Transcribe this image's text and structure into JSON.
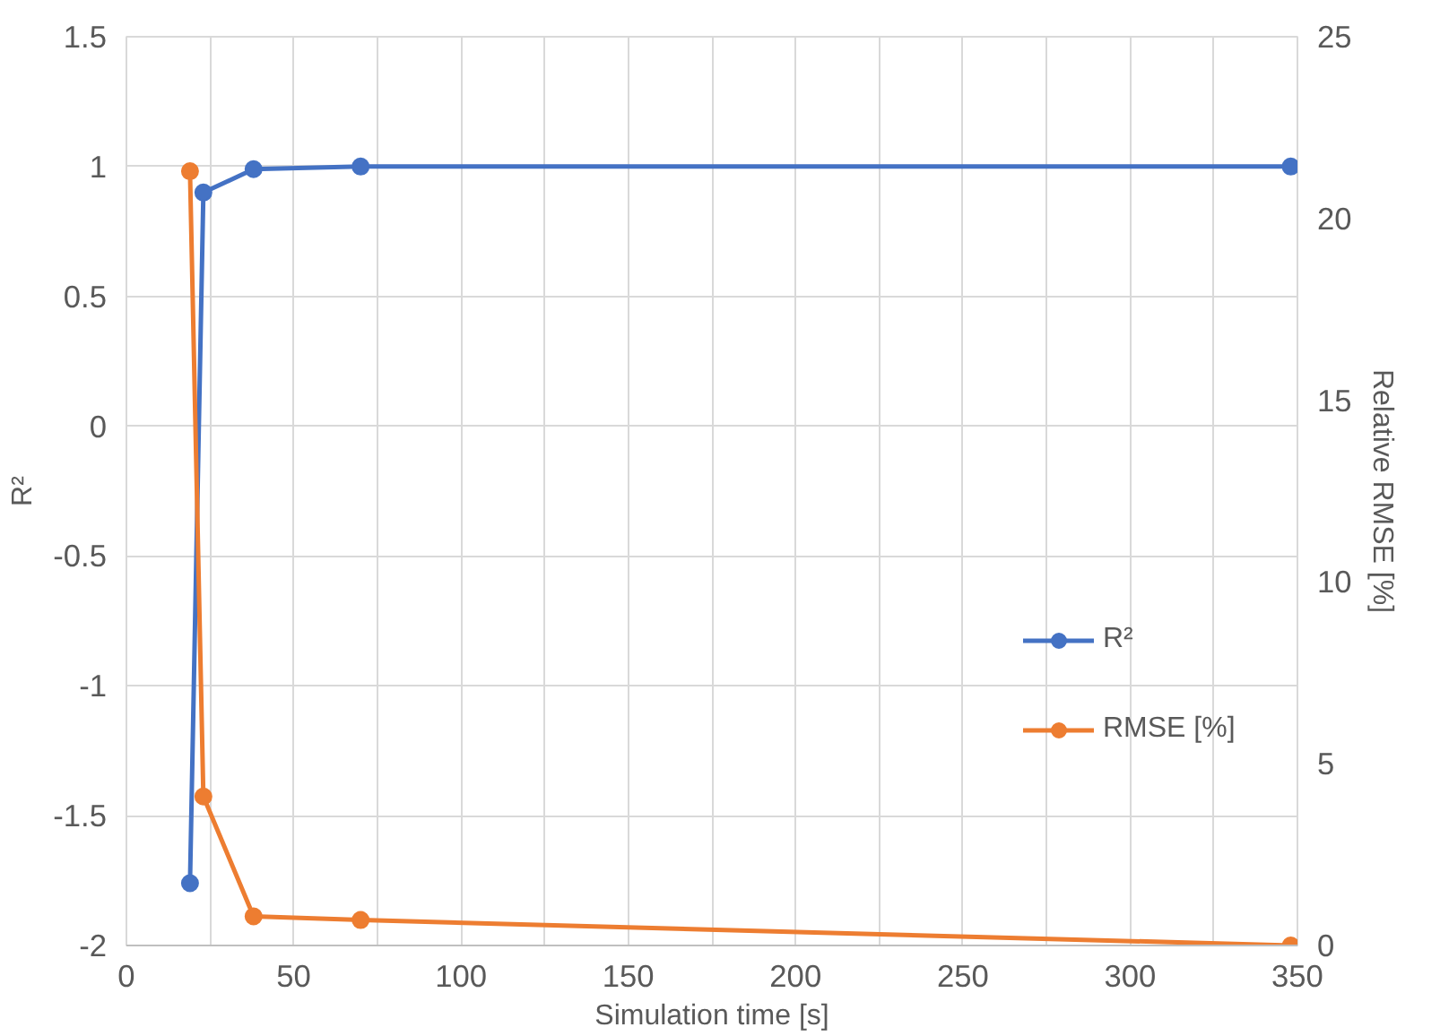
{
  "chart_data": {
    "type": "line",
    "xlabel": "Simulation time [s]",
    "ylabel": "R²",
    "y2label": "Relative RMSE [%]",
    "series": [
      {
        "name": "R²",
        "color": "#4472c4",
        "x": [
          19,
          23,
          38,
          70,
          348
        ],
        "values": [
          -1.76,
          0.9,
          0.99,
          1.0,
          1.0
        ]
      },
      {
        "name": "RMSE [%]",
        "color": "#ed7d31",
        "axis": "y2",
        "x": [
          19,
          23,
          38,
          70,
          348
        ],
        "values": [
          21.3,
          4.1,
          0.8,
          0.7,
          0.0
        ]
      }
    ],
    "xlim": [
      0,
      350
    ],
    "xticks": [
      0,
      {
        "value": 25,
        "label": null
      },
      50,
      {
        "value": 75,
        "label": null
      },
      100,
      {
        "value": 125,
        "label": null
      },
      150,
      {
        "value": 175,
        "label": null
      },
      200,
      {
        "value": 225,
        "label": null
      },
      250,
      {
        "value": 275,
        "label": null
      },
      300,
      {
        "value": 325,
        "label": null
      },
      350
    ],
    "ylim": [
      -2,
      1.5
    ],
    "yticks": [
      -2,
      -1.5,
      -1,
      -0.5,
      0,
      0.5,
      1,
      1.5
    ],
    "y2lim": [
      0,
      25
    ],
    "y2ticks": [
      0,
      5,
      10,
      15,
      20,
      25
    ],
    "grid": true,
    "legend": "right",
    "marker": "circle",
    "line_style": "solid"
  }
}
